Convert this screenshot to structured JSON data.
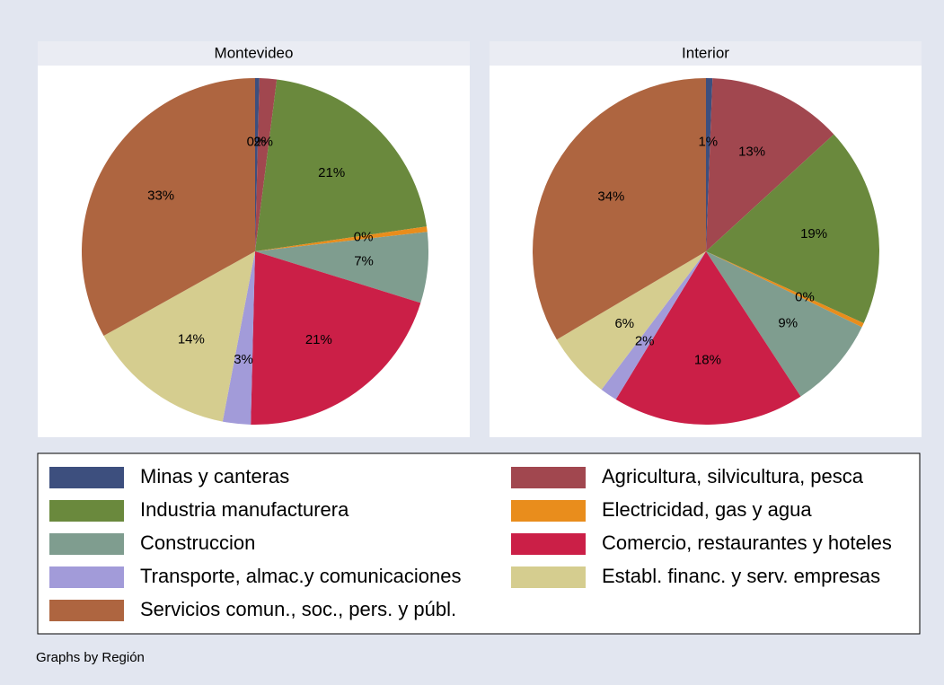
{
  "chart_data": [
    {
      "type": "pie",
      "title": "Montevideo",
      "categories": [
        "Minas y canteras",
        "Agricultura, silvicultura, pesca",
        "Industria manufacturera",
        "Electricidad, gas y agua",
        "Construccion",
        "Comercio, restaurantes y hoteles",
        "Transporte, almac.y comunicaciones",
        "Establ. financ. y serv. empresas",
        "Servicios comun., soc., pers. y públ."
      ],
      "values": [
        0.4,
        1.6,
        20.7,
        0.5,
        6.6,
        20.6,
        2.6,
        13.9,
        33.1
      ],
      "value_labels": [
        "0%",
        "2%",
        "21%",
        "0%",
        "7%",
        "21%",
        "3%",
        "14%",
        "33%"
      ],
      "colors": [
        "#3d4f7e",
        "#a1474f",
        "#6a893d",
        "#e98d1c",
        "#7f9d8f",
        "#cb1f47",
        "#a29bd9",
        "#d5cd8f",
        "#ae6540"
      ]
    },
    {
      "type": "pie",
      "title": "Interior",
      "categories": [
        "Minas y canteras",
        "Agricultura, silvicultura, pesca",
        "Industria manufacturera",
        "Electricidad, gas y agua",
        "Construccion",
        "Comercio, restaurantes y hoteles",
        "Transporte, almac.y comunicaciones",
        "Establ. financ. y serv. empresas",
        "Servicios comun., soc., pers. y públ."
      ],
      "values": [
        0.6,
        12.6,
        18.6,
        0.4,
        8.6,
        17.9,
        1.6,
        6.2,
        33.5
      ],
      "value_labels": [
        "1%",
        "13%",
        "19%",
        "0%",
        "9%",
        "18%",
        "2%",
        "6%",
        "34%"
      ],
      "colors": [
        "#3d4f7e",
        "#a1474f",
        "#6a893d",
        "#e98d1c",
        "#7f9d8f",
        "#cb1f47",
        "#a29bd9",
        "#d5cd8f",
        "#ae6540"
      ]
    }
  ],
  "note": "Graphs by Región"
}
